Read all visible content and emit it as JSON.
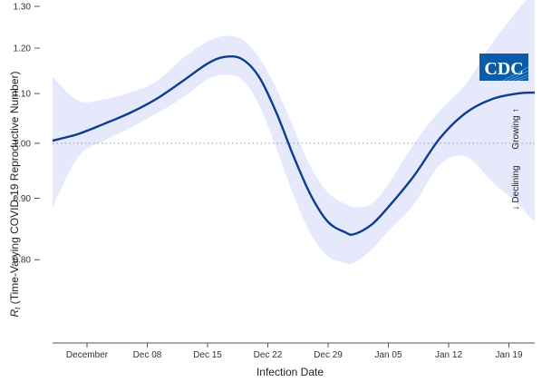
{
  "chart_data": {
    "type": "line",
    "xlabel": "Infection Date",
    "ylabel_main": "R",
    "ylabel_sub": "t",
    "ylabel_rest": " (Time-Varying COVID-19 Reproductive Number)",
    "ylim": [
      0.7,
      1.3
    ],
    "scale": "log",
    "yticks": [
      {
        "value": 0.8,
        "label": "0.80"
      },
      {
        "value": 0.9,
        "label": "0.90"
      },
      {
        "value": 1.0,
        "label": "1.00"
      },
      {
        "value": 1.1,
        "label": "1.10"
      },
      {
        "value": 1.2,
        "label": "1.20"
      },
      {
        "value": 1.3,
        "label": "1.30"
      }
    ],
    "xlim": [
      "2024-11-27",
      "2025-01-22"
    ],
    "xticks": [
      {
        "date": "2024-12-01",
        "label": "December"
      },
      {
        "date": "2024-12-08",
        "label": "Dec 08"
      },
      {
        "date": "2024-12-15",
        "label": "Dec 15"
      },
      {
        "date": "2024-12-22",
        "label": "Dec 22"
      },
      {
        "date": "2024-12-29",
        "label": "Dec 29"
      },
      {
        "date": "2025-01-05",
        "label": "Jan 05"
      },
      {
        "date": "2025-01-12",
        "label": "Jan 12"
      },
      {
        "date": "2025-01-19",
        "label": "Jan 19"
      }
    ],
    "reference_line": {
      "value": 1.0,
      "style": "dotted"
    },
    "series": [
      {
        "color": "#0b3d91",
        "band_color": "#e6e9fb",
        "points": [
          {
            "x": "2024-11-27",
            "y": 1.005,
            "lo": 0.885,
            "hi": 1.135
          },
          {
            "x": "2024-11-30",
            "y": 1.018,
            "lo": 0.975,
            "hi": 1.085
          },
          {
            "x": "2024-12-03",
            "y": 1.038,
            "lo": 1.005,
            "hi": 1.088
          },
          {
            "x": "2024-12-06",
            "y": 1.06,
            "lo": 1.03,
            "hi": 1.102
          },
          {
            "x": "2024-12-09",
            "y": 1.088,
            "lo": 1.058,
            "hi": 1.125
          },
          {
            "x": "2024-12-12",
            "y": 1.125,
            "lo": 1.09,
            "hi": 1.175
          },
          {
            "x": "2024-12-15",
            "y": 1.165,
            "lo": 1.13,
            "hi": 1.215
          },
          {
            "x": "2024-12-17",
            "y": 1.18,
            "lo": 1.14,
            "hi": 1.228
          },
          {
            "x": "2024-12-19",
            "y": 1.175,
            "lo": 1.13,
            "hi": 1.22
          },
          {
            "x": "2024-12-21",
            "y": 1.135,
            "lo": 1.075,
            "hi": 1.178
          },
          {
            "x": "2024-12-23",
            "y": 1.06,
            "lo": 0.99,
            "hi": 1.11
          },
          {
            "x": "2024-12-25",
            "y": 0.975,
            "lo": 0.905,
            "hi": 1.03
          },
          {
            "x": "2024-12-27",
            "y": 0.905,
            "lo": 0.84,
            "hi": 0.955
          },
          {
            "x": "2024-12-29",
            "y": 0.86,
            "lo": 0.805,
            "hi": 0.91
          },
          {
            "x": "2024-12-31",
            "y": 0.843,
            "lo": 0.795,
            "hi": 0.89
          },
          {
            "x": "2025-01-01",
            "y": 0.84,
            "lo": 0.795,
            "hi": 0.885
          },
          {
            "x": "2025-01-03",
            "y": 0.855,
            "lo": 0.815,
            "hi": 0.89
          },
          {
            "x": "2025-01-05",
            "y": 0.885,
            "lo": 0.845,
            "hi": 0.925
          },
          {
            "x": "2025-01-08",
            "y": 0.94,
            "lo": 0.89,
            "hi": 1.0
          },
          {
            "x": "2025-01-11",
            "y": 1.01,
            "lo": 0.96,
            "hi": 1.065
          },
          {
            "x": "2025-01-14",
            "y": 1.06,
            "lo": 0.975,
            "hi": 1.12
          },
          {
            "x": "2025-01-17",
            "y": 1.088,
            "lo": 0.93,
            "hi": 1.21
          },
          {
            "x": "2025-01-20",
            "y": 1.1,
            "lo": 0.89,
            "hi": 1.29
          },
          {
            "x": "2025-01-22",
            "y": 1.102,
            "lo": 0.86,
            "hi": 1.34
          }
        ]
      }
    ],
    "annotations": {
      "growing": "Growing",
      "declining": "Declining",
      "arrow_up": "↑",
      "arrow_down": "↓"
    },
    "grid": false
  },
  "logo": {
    "text": "CDC",
    "color": "#0b5ca8"
  }
}
